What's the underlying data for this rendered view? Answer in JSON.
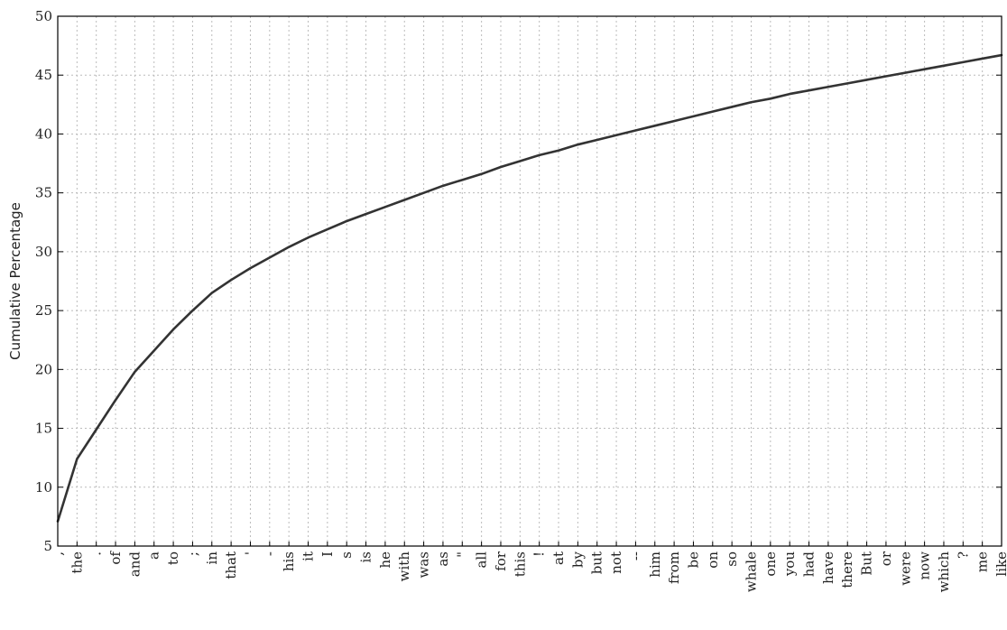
{
  "chart_data": {
    "type": "line",
    "title": "",
    "xlabel": "",
    "ylabel": "Cumulative Percentage",
    "ylim": [
      5,
      50
    ],
    "yticks": [
      5,
      10,
      15,
      20,
      25,
      30,
      35,
      40,
      45,
      50
    ],
    "grid": true,
    "legend": "none",
    "colors": {
      "line": "#333333",
      "grid": "#bbbbbb",
      "axis": "#000000"
    },
    "categories": [
      ",",
      "the",
      ".",
      "of",
      "and",
      "a",
      "to",
      ";",
      "in",
      "that",
      "'",
      "-",
      "his",
      "it",
      "I",
      "s",
      "is",
      "he",
      "with",
      "was",
      "as",
      "\"",
      "all",
      "for",
      "this",
      "!",
      "at",
      "by",
      "but",
      "not",
      "--",
      "him",
      "from",
      "be",
      "on",
      "so",
      "whale",
      "one",
      "you",
      "had",
      "have",
      "there",
      "But",
      "or",
      "were",
      "now",
      "which",
      "?",
      "me",
      "like"
    ],
    "series": [
      {
        "values": [
          7.1,
          12.4,
          14.9,
          17.4,
          19.8,
          21.6,
          23.4,
          25.0,
          26.5,
          27.6,
          28.6,
          29.5,
          30.4,
          31.2,
          31.9,
          32.6,
          33.2,
          33.8,
          34.4,
          35.0,
          35.6,
          36.1,
          36.6,
          37.2,
          37.7,
          38.2,
          38.6,
          39.1,
          39.5,
          39.9,
          40.3,
          40.7,
          41.1,
          41.5,
          41.9,
          42.3,
          42.7,
          43.0,
          43.4,
          43.7,
          44.0,
          44.3,
          44.6,
          44.9,
          45.2,
          45.5,
          45.8,
          46.1,
          46.4,
          46.7
        ]
      }
    ]
  }
}
